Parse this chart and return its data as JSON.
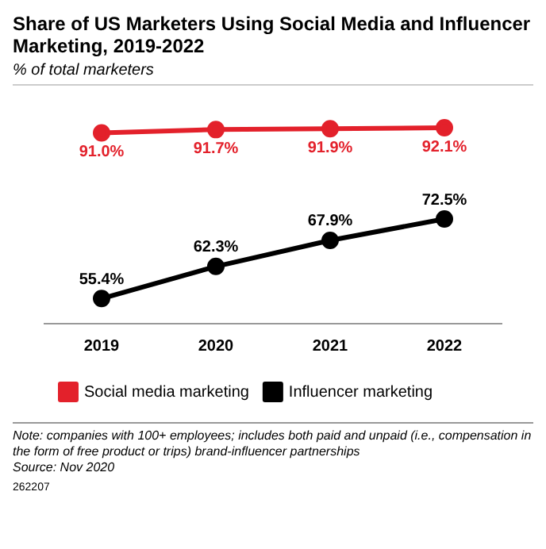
{
  "chart_data": {
    "type": "line",
    "title": "Share of US Marketers Using Social Media and Influencer Marketing, 2019-2022",
    "subtitle": "% of total marketers",
    "categories": [
      "2019",
      "2020",
      "2021",
      "2022"
    ],
    "series": [
      {
        "name": "Social media marketing",
        "color": "#e3212b",
        "values": [
          91.0,
          91.7,
          91.9,
          92.1
        ],
        "value_labels": [
          "91.0%",
          "91.7%",
          "91.9%",
          "92.1%"
        ]
      },
      {
        "name": "Influencer marketing",
        "color": "#000000",
        "values": [
          55.4,
          62.3,
          67.9,
          72.5
        ],
        "value_labels": [
          "55.4%",
          "62.3%",
          "67.9%",
          "72.5%"
        ]
      }
    ],
    "marker": "circle",
    "grid": false,
    "legend": "bottom",
    "tick_labels": "x",
    "annotations": [
      "Note: companies with 100+ employees; includes both paid and unpaid (i.e., compensation in the form of free product or trips) brand-influencer partnerships",
      "Source: Nov 2020",
      "262207"
    ]
  }
}
